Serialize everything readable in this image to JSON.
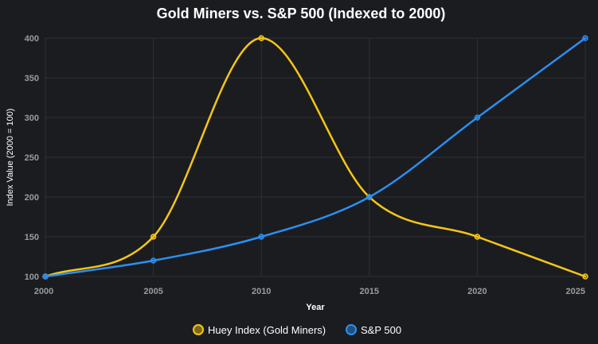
{
  "chart_data": {
    "type": "line",
    "title": "Gold Miners vs. S&P 500 (Indexed to 2000)",
    "xlabel": "Year",
    "ylabel": "Index Value (2000 = 100)",
    "x": [
      2000,
      2005,
      2010,
      2015,
      2020,
      2025
    ],
    "x_tick_labels": [
      "2000",
      "2005",
      "2010",
      "2015",
      "2020",
      "2025"
    ],
    "y_tick_values": [
      100,
      150,
      200,
      250,
      300,
      350,
      400
    ],
    "y_tick_labels": [
      "100",
      "150",
      "200",
      "250",
      "300",
      "350",
      "400"
    ],
    "xlim": [
      2000,
      2025
    ],
    "ylim": [
      100,
      400
    ],
    "grid": true,
    "legend_position": "bottom-center",
    "series": [
      {
        "name": "Huey Index (Gold Miners)",
        "color": "#f5c518",
        "values": [
          100,
          150,
          400,
          200,
          150,
          100
        ]
      },
      {
        "name": "S&P 500",
        "color": "#2b8ff2",
        "values": [
          100,
          120,
          150,
          200,
          300,
          400
        ]
      }
    ]
  },
  "colors": {
    "background": "#1b1c20",
    "grid": "#2e3035"
  }
}
